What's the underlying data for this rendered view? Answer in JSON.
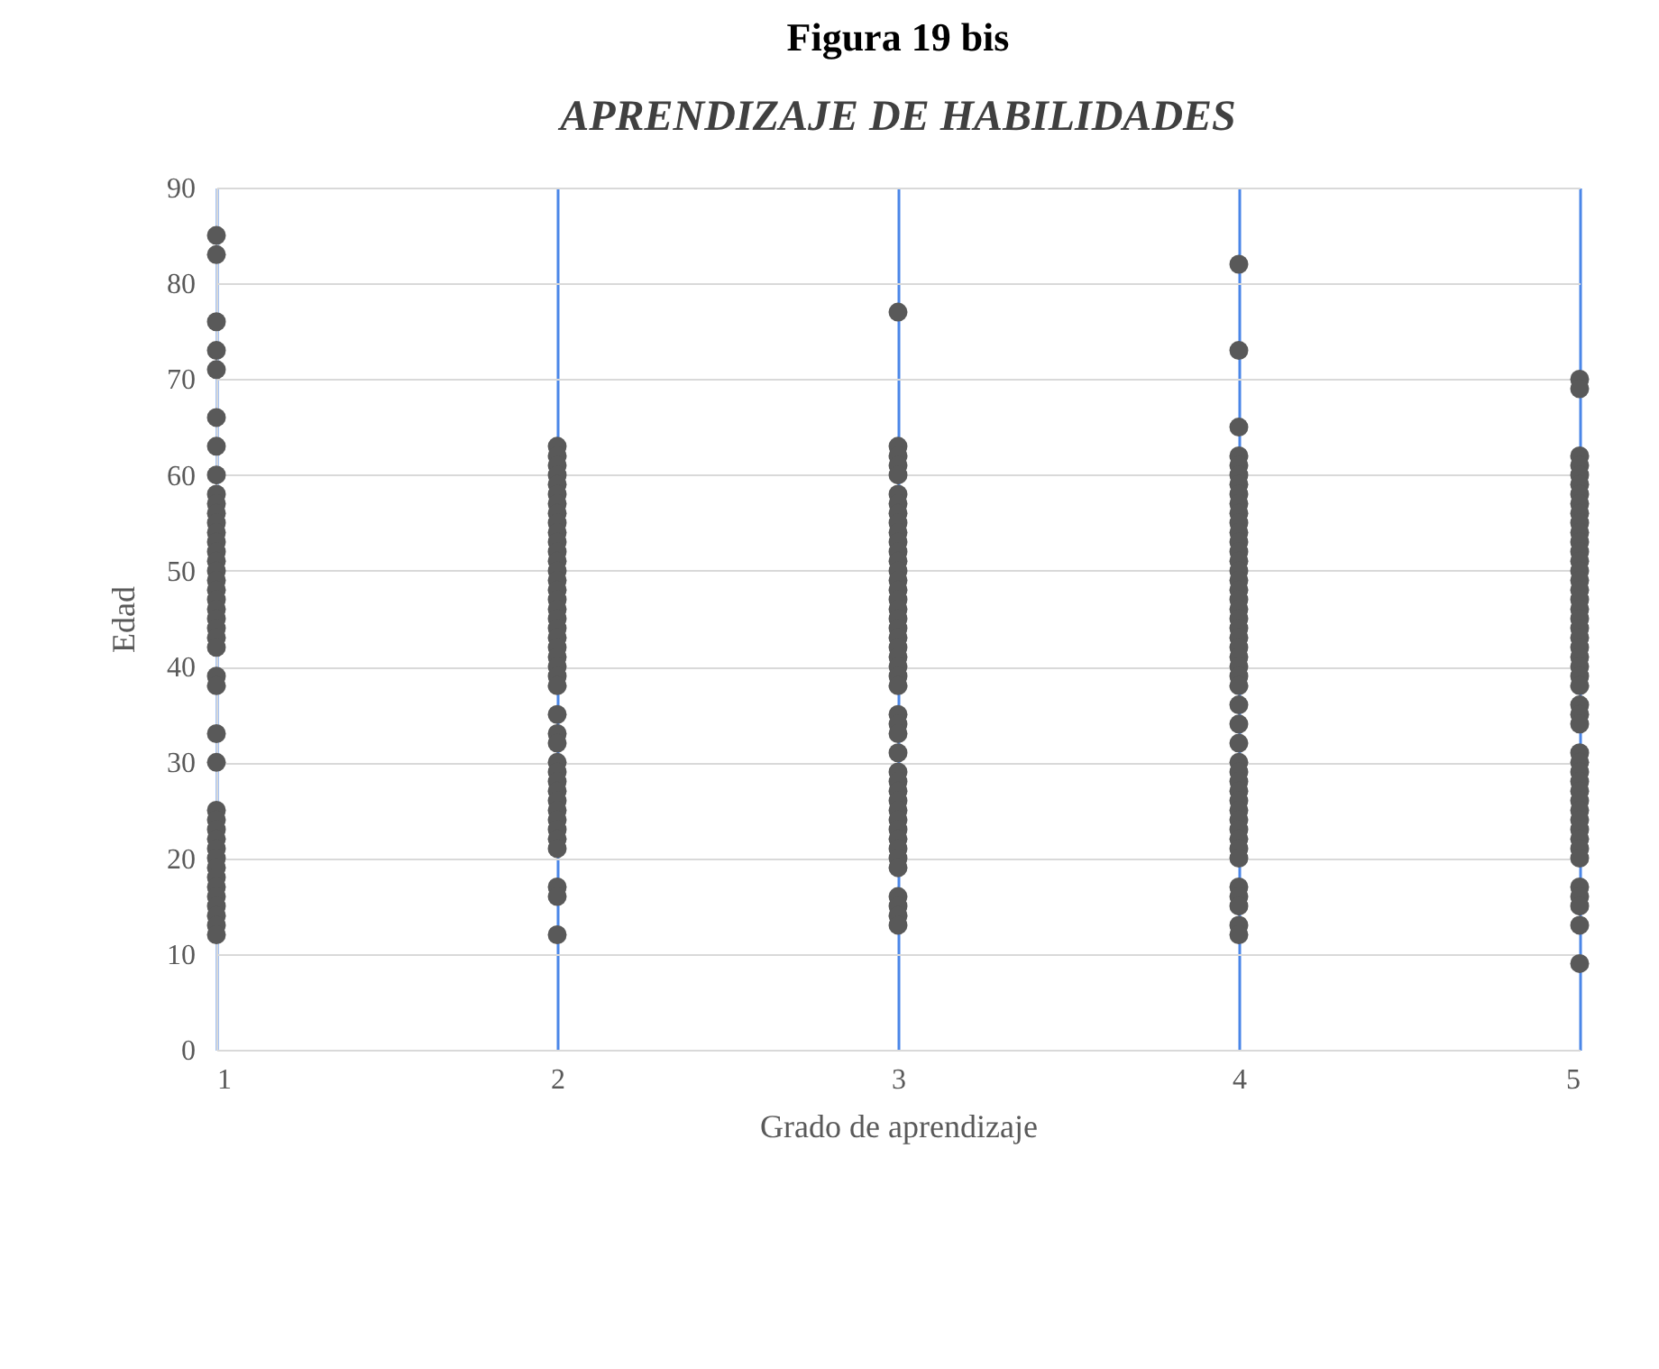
{
  "chart_data": {
    "type": "scatter",
    "title": "Figura 19  bis",
    "subtitle": "APRENDIZAJE DE HABILIDADES",
    "xlabel": "Grado de aprendizaje",
    "ylabel": "Edad",
    "series": [
      {
        "color": "#595959",
        "x": [
          1,
          1,
          1,
          1,
          1,
          1,
          1,
          1,
          1,
          1,
          1,
          1,
          1,
          1,
          1,
          1,
          1,
          1,
          1,
          1,
          1,
          1,
          1,
          1,
          1,
          1,
          1,
          1,
          1,
          1,
          1,
          1,
          1,
          1,
          1,
          1,
          1,
          1,
          1,
          1,
          1,
          1,
          1
        ],
        "values": [
          85,
          83,
          76,
          73,
          71,
          66,
          63,
          60,
          58,
          57,
          56,
          55,
          54,
          53,
          52,
          51,
          50,
          49,
          48,
          47,
          46,
          45,
          44,
          43,
          42,
          39,
          38,
          33,
          30,
          25,
          24,
          23,
          22,
          21,
          20,
          19,
          18,
          17,
          16,
          15,
          14,
          13,
          12
        ]
      },
      {
        "color": "#595959",
        "x": [
          2,
          2,
          2,
          2,
          2,
          2,
          2,
          2,
          2,
          2,
          2,
          2,
          2,
          2,
          2,
          2,
          2,
          2,
          2,
          2,
          2,
          2,
          2,
          2,
          2,
          2,
          2,
          2,
          2,
          2,
          2,
          2,
          2,
          2,
          2,
          2,
          2,
          2,
          2,
          2,
          2,
          2
        ],
        "values": [
          63,
          62,
          61,
          60,
          59,
          58,
          57,
          56,
          55,
          54,
          53,
          52,
          51,
          50,
          49,
          48,
          47,
          46,
          45,
          44,
          43,
          42,
          41,
          40,
          39,
          38,
          35,
          33,
          32,
          30,
          29,
          28,
          27,
          26,
          25,
          24,
          23,
          22,
          21,
          17,
          16,
          12
        ]
      },
      {
        "color": "#595959",
        "x": [
          3,
          3,
          3,
          3,
          3,
          3,
          3,
          3,
          3,
          3,
          3,
          3,
          3,
          3,
          3,
          3,
          3,
          3,
          3,
          3,
          3,
          3,
          3,
          3,
          3,
          3,
          3,
          3,
          3,
          3,
          3,
          3,
          3,
          3,
          3,
          3,
          3,
          3,
          3,
          3,
          3,
          3,
          3,
          3,
          3
        ],
        "values": [
          77,
          63,
          62,
          61,
          60,
          58,
          57,
          56,
          55,
          54,
          53,
          52,
          51,
          50,
          49,
          48,
          47,
          46,
          45,
          44,
          43,
          42,
          41,
          40,
          39,
          38,
          35,
          34,
          33,
          31,
          29,
          28,
          27,
          26,
          25,
          24,
          23,
          22,
          21,
          20,
          19,
          16,
          15,
          14,
          13
        ]
      },
      {
        "color": "#595959",
        "x": [
          4,
          4,
          4,
          4,
          4,
          4,
          4,
          4,
          4,
          4,
          4,
          4,
          4,
          4,
          4,
          4,
          4,
          4,
          4,
          4,
          4,
          4,
          4,
          4,
          4,
          4,
          4,
          4,
          4,
          4,
          4,
          4,
          4,
          4,
          4,
          4,
          4,
          4,
          4,
          4,
          4,
          4,
          4,
          4,
          4,
          4,
          4
        ],
        "values": [
          82,
          73,
          65,
          62,
          61,
          60,
          59,
          58,
          57,
          56,
          55,
          54,
          53,
          52,
          51,
          50,
          49,
          48,
          47,
          46,
          45,
          44,
          43,
          42,
          41,
          40,
          39,
          38,
          36,
          34,
          32,
          30,
          29,
          28,
          27,
          26,
          25,
          24,
          23,
          22,
          21,
          20,
          17,
          16,
          15,
          13,
          12
        ]
      },
      {
        "color": "#595959",
        "x": [
          5,
          5,
          5,
          5,
          5,
          5,
          5,
          5,
          5,
          5,
          5,
          5,
          5,
          5,
          5,
          5,
          5,
          5,
          5,
          5,
          5,
          5,
          5,
          5,
          5,
          5,
          5,
          5,
          5,
          5,
          5,
          5,
          5,
          5,
          5,
          5,
          5,
          5,
          5,
          5,
          5,
          5,
          5,
          5,
          5,
          5,
          5
        ],
        "values": [
          70,
          69,
          62,
          61,
          60,
          59,
          58,
          57,
          56,
          55,
          54,
          53,
          52,
          51,
          50,
          49,
          48,
          47,
          46,
          45,
          44,
          43,
          42,
          41,
          40,
          39,
          38,
          36,
          35,
          34,
          31,
          30,
          29,
          28,
          27,
          26,
          25,
          24,
          23,
          22,
          21,
          20,
          17,
          16,
          15,
          13,
          9
        ]
      }
    ],
    "xlim": [
      1,
      5
    ],
    "xticks": [
      1,
      2,
      3,
      4,
      5
    ],
    "ylim": [
      0,
      90
    ],
    "yticks": [
      0,
      10,
      20,
      30,
      40,
      50,
      60,
      70,
      80,
      90
    ],
    "grid": true,
    "marker": "circle"
  }
}
